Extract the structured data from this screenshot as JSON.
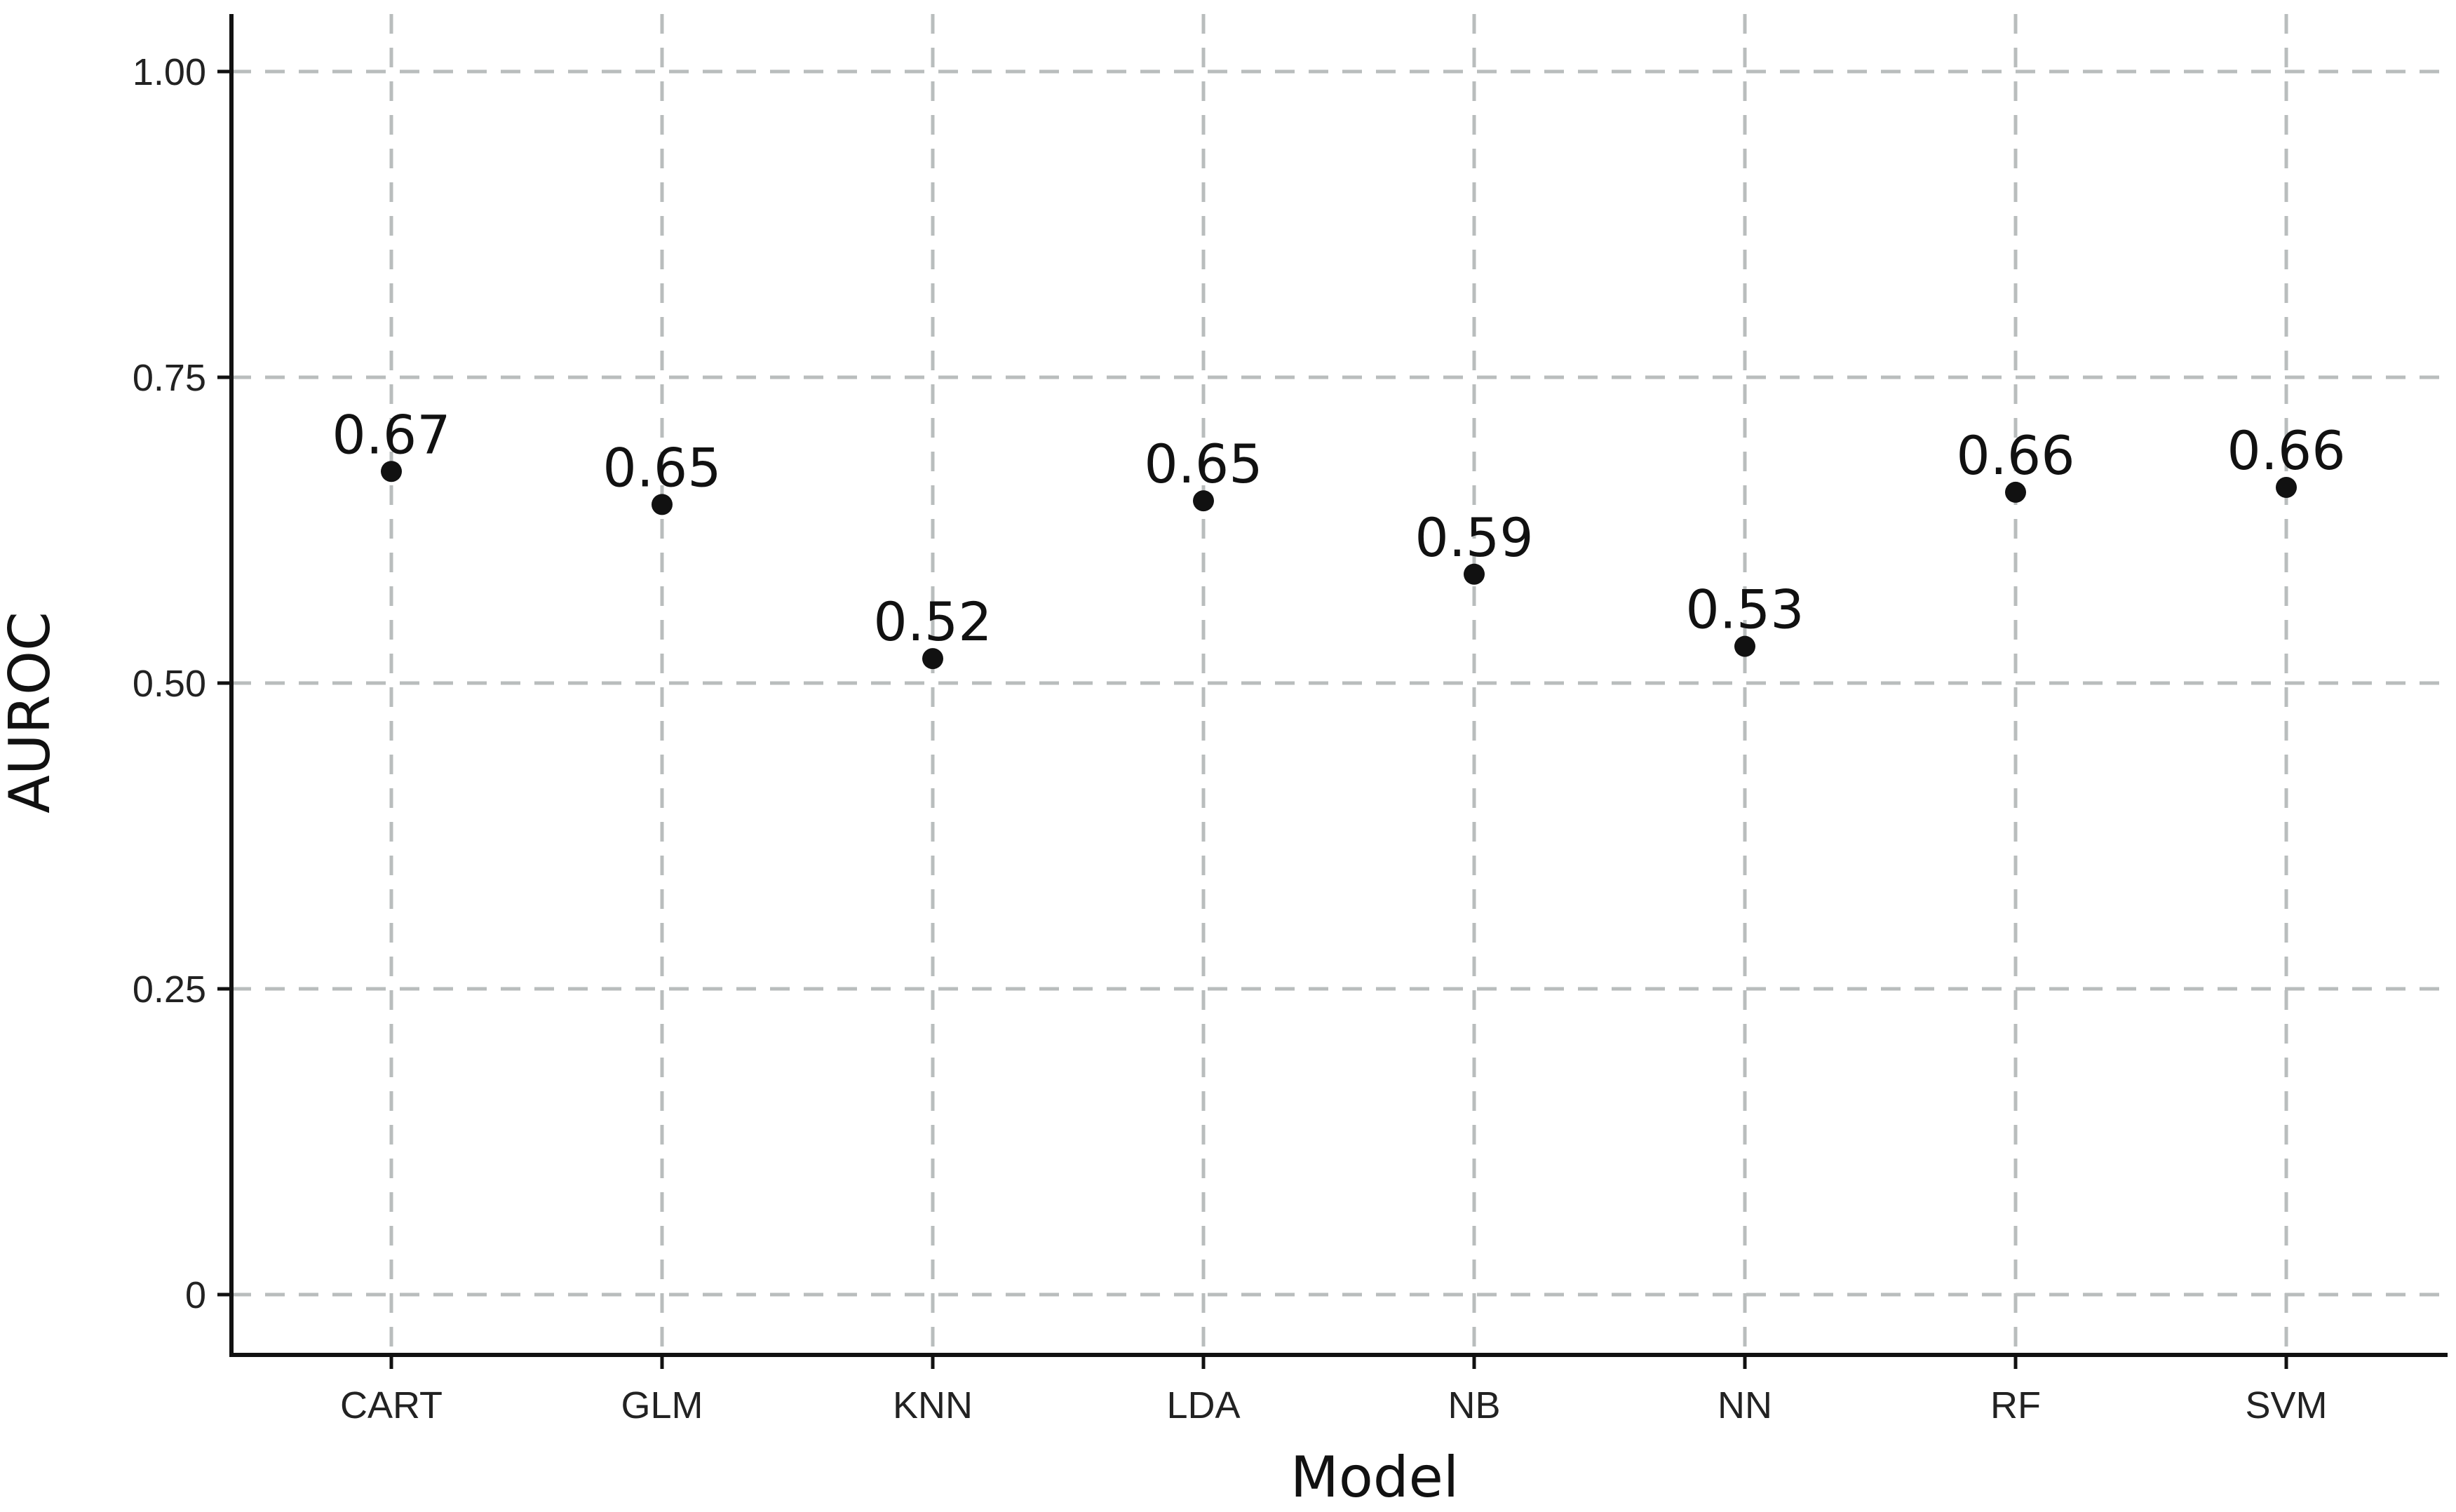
{
  "chart_data": {
    "type": "scatter",
    "title": "",
    "xlabel": "Model",
    "ylabel": "AUROC",
    "categories": [
      "CART",
      "GLM",
      "KNN",
      "LDA",
      "NB",
      "NN",
      "RF",
      "SVM"
    ],
    "values": [
      0.673,
      0.646,
      0.52,
      0.649,
      0.589,
      0.53,
      0.656,
      0.66
    ],
    "data_labels": [
      "0.67",
      "0.65",
      "0.52",
      "0.65",
      "0.59",
      "0.53",
      "0.66",
      "0.66"
    ],
    "y_ticks": [
      0,
      0.25,
      0.5,
      0.75,
      1.0
    ],
    "y_tick_labels": [
      "0",
      "0.25",
      "0.50",
      "0.75",
      "1.00"
    ],
    "ylim": [
      -0.05,
      1.05
    ],
    "grid": true,
    "grid_style": "dashed",
    "colors": {
      "point": "#111111",
      "grid": "#b9bdbd",
      "axis": "#111111"
    }
  }
}
